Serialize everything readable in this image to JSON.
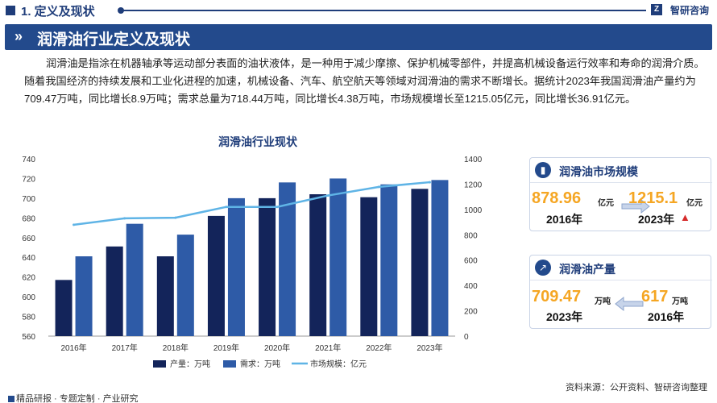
{
  "header": {
    "section_title": "1. 定义及现状",
    "brand": "智研咨询",
    "brand_icon": "Z"
  },
  "banner": {
    "title": "润滑油行业定义及现状"
  },
  "intro": "润滑油是指涂在机器轴承等运动部分表面的油状液体，是一种用于减少摩擦、保护机械零部件，并提高机械设备运行效率和寿命的润滑介质。随着我国经济的持续发展和工业化进程的加速，机械设备、汽车、航空航天等领域对润滑油的需求不断增长。据统计2023年我国润滑油产量约为709.47万吨，同比增长8.9万吨；需求总量为718.44万吨，同比增长4.38万吨，市场规模增长至1215.05亿元，同比增长36.91亿元。",
  "chart_data": {
    "type": "bar",
    "title": "润滑油行业现状",
    "categories": [
      "2016年",
      "2017年",
      "2018年",
      "2019年",
      "2020年",
      "2021年",
      "2022年",
      "2023年"
    ],
    "series": [
      {
        "name": "产量：万吨",
        "type": "bar",
        "axis": "left",
        "color": "#13245a",
        "values": [
          617,
          651,
          641,
          682,
          700,
          704,
          701,
          709.47
        ]
      },
      {
        "name": "需求：万吨",
        "type": "bar",
        "axis": "left",
        "color": "#2e5ba7",
        "values": [
          641,
          674,
          663,
          700,
          716,
          720,
          714,
          718.44
        ]
      },
      {
        "name": "市场规模：亿元",
        "type": "line",
        "axis": "right",
        "color": "#5fb4e6",
        "values": [
          878.96,
          930,
          935,
          1020,
          1020,
          1110,
          1178.14,
          1215.05
        ]
      }
    ],
    "y_left": {
      "ylim": [
        560,
        740
      ],
      "ticks": [
        560,
        580,
        600,
        620,
        640,
        660,
        680,
        700,
        720,
        740
      ]
    },
    "y_right": {
      "ylim": [
        0,
        1400
      ],
      "ticks": [
        0,
        200,
        400,
        600,
        800,
        1000,
        1200,
        1400
      ]
    },
    "legend_position": "bottom",
    "grid": false
  },
  "cards": {
    "market": {
      "title": "润滑油市场规模",
      "icon": "bar-chart-icon",
      "left_value": "878.96",
      "left_unit": "亿元",
      "left_year": "2016年",
      "right_value": "1215.1",
      "right_unit": "亿元",
      "right_year": "2023年"
    },
    "production": {
      "title": "润滑油产量",
      "icon": "line-chart-icon",
      "left_value": "709.47",
      "left_unit": "万吨",
      "left_year": "2023年",
      "right_value": "617",
      "right_unit": "万吨",
      "right_year": "2016年"
    }
  },
  "footer": {
    "source": "资料来源：公开资料、智研咨询整理",
    "items": [
      "精品研报",
      "专题定制",
      "产业研究"
    ]
  },
  "colors": {
    "navy": "#1f3d7a",
    "accent": "#f5a623",
    "up": "#d62b2b"
  }
}
